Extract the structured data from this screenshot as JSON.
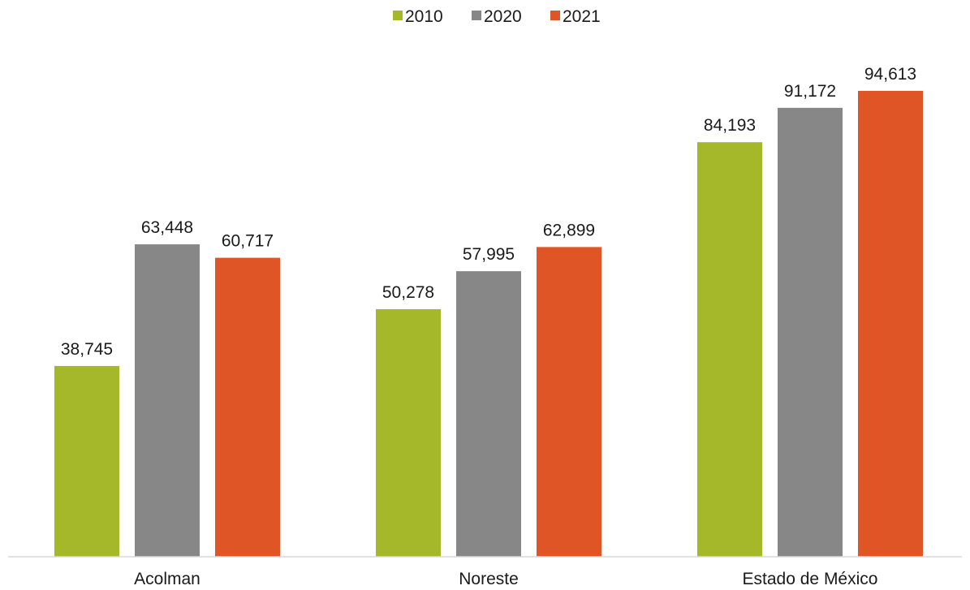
{
  "chart_data": {
    "type": "bar",
    "title": "",
    "xlabel": "",
    "ylabel": "",
    "categories": [
      "Acolman",
      "Noreste",
      "Estado de México"
    ],
    "series": [
      {
        "name": "2010",
        "color": "#a5b829",
        "values": [
          38745,
          50278,
          84193
        ],
        "labels": [
          "38,745",
          "50,278",
          "84,193"
        ]
      },
      {
        "name": "2020",
        "color": "#878787",
        "values": [
          63448,
          57995,
          91172
        ],
        "labels": [
          "63,448",
          "57,995",
          "91,172"
        ]
      },
      {
        "name": "2021",
        "color": "#e05526",
        "values": [
          60717,
          62899,
          94613
        ],
        "labels": [
          "60,717",
          "62,899",
          "94,613"
        ]
      }
    ],
    "ylim": [
      0,
      100000
    ],
    "grid": false,
    "legend_position": "top-center",
    "axis_color": "#d9d9d9"
  }
}
